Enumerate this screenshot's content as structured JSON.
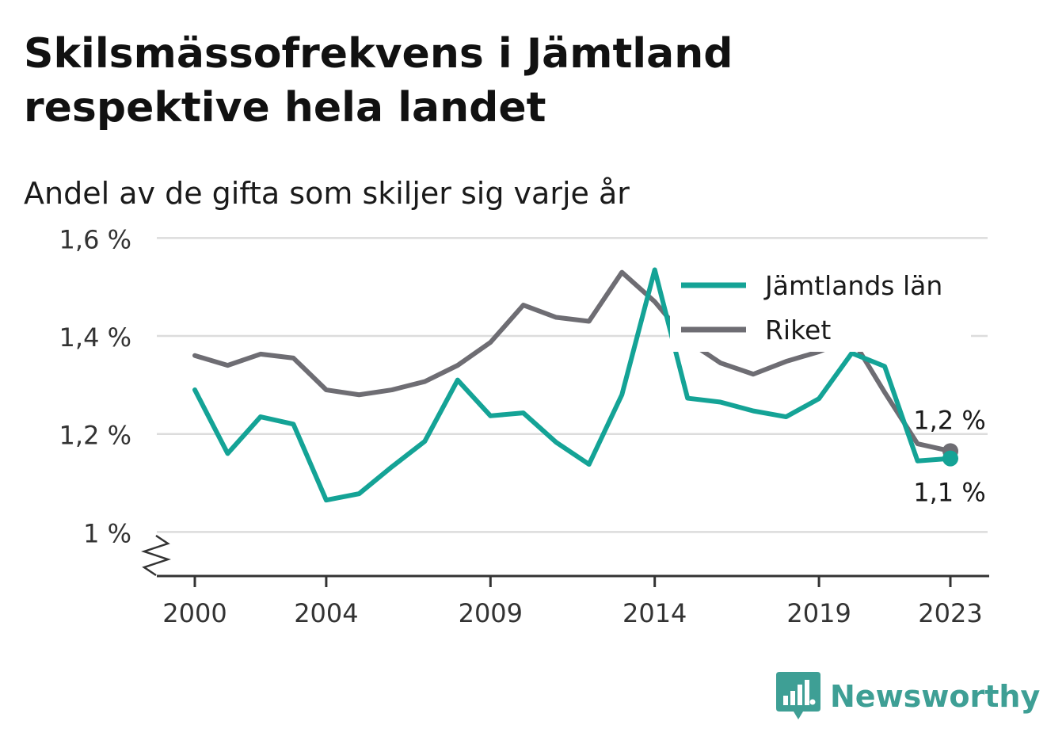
{
  "title": "Skilsmässofrekvens i Jämtland respektive hela landet",
  "subtitle": "Andel av de gifta som skiljer sig varje år",
  "brand": {
    "name": "Newsworthy",
    "icon": "bar-chart-badge-icon",
    "color": "#3e9f95"
  },
  "chart_data": {
    "type": "line",
    "title": "Skilsmässofrekvens i Jämtland respektive hela landet",
    "subtitle": "Andel av de gifta som skiljer sig varje år",
    "xlabel": "",
    "ylabel": "",
    "x": [
      2000,
      2001,
      2002,
      2003,
      2004,
      2005,
      2006,
      2007,
      2008,
      2009,
      2010,
      2011,
      2012,
      2013,
      2014,
      2015,
      2016,
      2017,
      2018,
      2019,
      2020,
      2021,
      2022,
      2023
    ],
    "x_ticks": [
      "2000",
      "2004",
      "2009",
      "2014",
      "2019",
      "2023"
    ],
    "ylim": [
      0.91,
      1.62
    ],
    "y_ticks": [
      1.0,
      1.2,
      1.4,
      1.6
    ],
    "y_tick_labels": [
      "1 %",
      "1,2 %",
      "1,4 %",
      "1,6 %"
    ],
    "y_axis_break": true,
    "grid": true,
    "legend_position": "top-right",
    "series": [
      {
        "name": "Jämtlands län",
        "color": "#14a396",
        "values": [
          1.29,
          1.16,
          1.235,
          1.22,
          1.065,
          1.078,
          1.133,
          1.185,
          1.31,
          1.237,
          1.243,
          1.183,
          1.138,
          1.28,
          1.535,
          1.273,
          1.265,
          1.247,
          1.235,
          1.272,
          1.365,
          1.338,
          1.145,
          1.15
        ],
        "end_label": "1,1 %"
      },
      {
        "name": "Riket",
        "color": "#6e6d73",
        "values": [
          1.36,
          1.34,
          1.363,
          1.355,
          1.29,
          1.28,
          1.29,
          1.307,
          1.34,
          1.387,
          1.463,
          1.438,
          1.43,
          1.53,
          1.47,
          1.39,
          1.345,
          1.322,
          1.348,
          1.368,
          1.395,
          1.285,
          1.18,
          1.165
        ],
        "end_label": "1,2 %"
      }
    ]
  }
}
